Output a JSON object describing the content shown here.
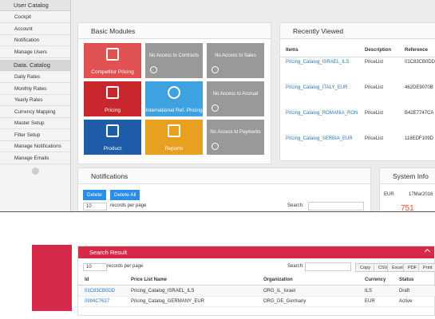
{
  "sidebar": {
    "groups": [
      {
        "title": "User Catalog",
        "items": [
          "Cockpit",
          "Account",
          "Notification",
          "Manage Users"
        ]
      },
      {
        "title": "Data. Catalog",
        "items": [
          "Daily Rates",
          "Monthly Rates",
          "Yearly Rates",
          "Currency Mapping",
          "Master Setup",
          "Filter Setup",
          "Manage Notifications",
          "Manage Emails"
        ]
      }
    ]
  },
  "modules": {
    "title": "Basic Modules",
    "tiles": [
      "Competitor Pricing",
      "No Access to Contracts",
      "No Access to Sales",
      "Pricing",
      "International Ref. Pricing",
      "No Access to Accrual",
      "Product",
      "Reports",
      "No Access to Payments"
    ]
  },
  "recently_viewed": {
    "title": "Recently Viewed",
    "columns": [
      "Items",
      "Description",
      "Reference"
    ],
    "rows": [
      [
        "Pricing_Catalog_ISRAEL_ILS",
        "PriceList",
        "01C83CB0DD"
      ],
      [
        "Pricing_Catalog_ITALY_EUR",
        "PriceList",
        "462DE9070B"
      ],
      [
        "Pricing_Catalog_ROMANIA_RON",
        "PriceList",
        "B42E7747CA"
      ],
      [
        "Pricing_Catalog_SERBIA_EUR",
        "PriceList",
        "118EDF109D"
      ]
    ]
  },
  "notifications": {
    "title": "Notifications",
    "buttons": [
      "Delete",
      "Delete All"
    ],
    "page_size": "10",
    "records_label": "records per page",
    "search_label": "Search:"
  },
  "system_info": {
    "title": "System Info",
    "currency": "EUR",
    "date": "17Mar2016",
    "count": "751"
  },
  "search_result": {
    "title": "Search Result",
    "page_size": "10",
    "records_label": "records per page",
    "search_label": "Search:",
    "buttons": [
      "Copy",
      "CSV",
      "Excel",
      "PDF",
      "Print"
    ],
    "columns": [
      "Id",
      "Price List Name",
      "Organization",
      "Currency",
      "Status"
    ],
    "rows": [
      [
        "01C83CB0DD",
        "Pricing_Catalog_ISRAEL_ILS",
        "ORG_IL_Israel",
        "ILS",
        "Draft"
      ],
      [
        "0994C7637",
        "Pricing_Catalog_GERMANY_EUR",
        "ORG_DE_Germany",
        "EUR",
        "Active"
      ]
    ]
  }
}
